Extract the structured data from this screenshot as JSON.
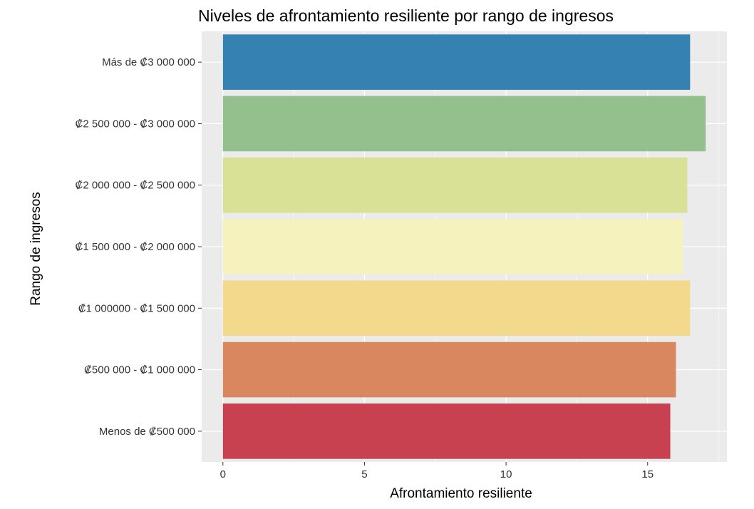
{
  "chart_data": {
    "type": "bar",
    "orientation": "horizontal",
    "title": "Niveles de afrontamiento resiliente por rango de ingresos",
    "xlabel": "Afrontamiento resiliente",
    "ylabel": "Rango de ingresos",
    "xlim": [
      -0.75,
      17.8
    ],
    "xticks": [
      0,
      5,
      10,
      15
    ],
    "categories": [
      "Más de ₡3 000 000",
      "₡2 500 000 - ₡3 000 000",
      "₡2 000 000 - ₡2 500 000",
      "₡1 500 000 - ₡2 000 000",
      "₡1 000000 - ₡1 500 000",
      "₡500 000 - ₡1 000 000",
      "Menos de ₡500 000"
    ],
    "values": [
      16.5,
      17.05,
      16.4,
      16.25,
      16.5,
      16.0,
      15.8
    ],
    "colors": [
      "#3481b2",
      "#93c08c",
      "#d9e196",
      "#f5f2be",
      "#f3d98c",
      "#d9875e",
      "#c74150"
    ],
    "grid": true,
    "panel_background": "#ebebeb",
    "legend": "none"
  }
}
